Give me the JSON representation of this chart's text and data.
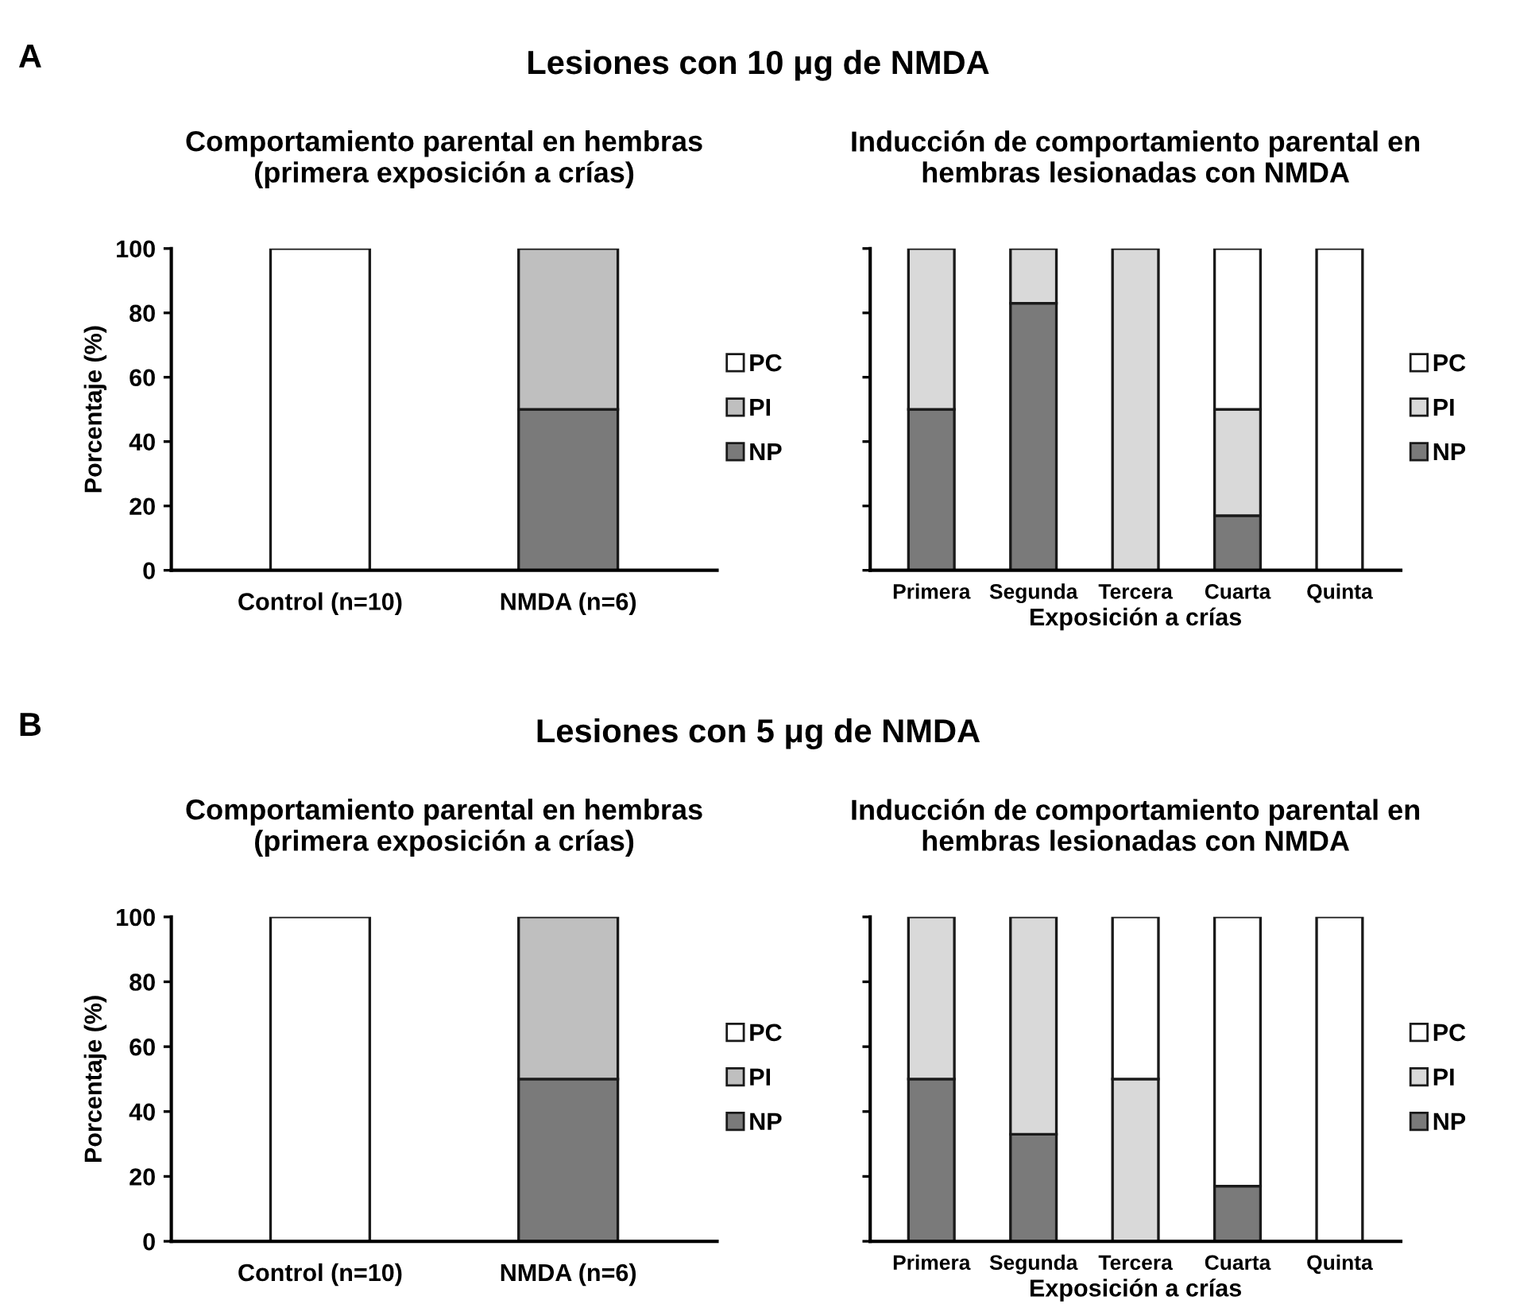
{
  "chart_data": [
    {
      "type": "bar",
      "stacked": true,
      "title": "Comportamiento parental en hembras\n(primera exposición a crías)",
      "ylabel": "Porcentaje (%)",
      "annotations": [
        "A",
        "Lesiones con 10 μg de NMDA"
      ],
      "categories": [
        "Control (n=10)",
        "NMDA (n=6)"
      ],
      "ylim": [
        0,
        100
      ],
      "yticks": [
        0,
        20,
        40,
        60,
        80,
        100
      ],
      "legend": "right",
      "series": [
        {
          "name": "NP",
          "color": "#7a7a7a",
          "values": [
            0,
            50
          ]
        },
        {
          "name": "PI",
          "color": "#bfbfbf",
          "values": [
            0,
            50
          ]
        },
        {
          "name": "PC",
          "color": "#ffffff",
          "values": [
            100,
            0
          ]
        }
      ]
    },
    {
      "type": "bar",
      "stacked": true,
      "title": "Inducción de comportamiento parental en\nhembras lesionadas con NMDA",
      "xlabel": "Exposición a crías",
      "categories": [
        "Primera",
        "Segunda",
        "Tercera",
        "Cuarta",
        "Quinta"
      ],
      "ylim": [
        0,
        100
      ],
      "yticks": [
        {
          "value": 0,
          "label": null
        },
        {
          "value": 20,
          "label": null
        },
        {
          "value": 40,
          "label": null
        },
        {
          "value": 60,
          "label": null
        },
        {
          "value": 80,
          "label": null
        },
        {
          "value": 100,
          "label": null
        }
      ],
      "tick_labels": "x",
      "legend": "right",
      "series": [
        {
          "name": "NP",
          "color": "#7a7a7a",
          "values": [
            50,
            83,
            0,
            17,
            0
          ]
        },
        {
          "name": "PI",
          "color": "#d9d9d9",
          "values": [
            50,
            17,
            100,
            33,
            0
          ]
        },
        {
          "name": "PC",
          "color": "#ffffff",
          "values": [
            0,
            0,
            0,
            50,
            100
          ]
        }
      ]
    },
    {
      "type": "bar",
      "stacked": true,
      "title": "Comportamiento parental en hembras\n(primera exposición a crías)",
      "ylabel": "Porcentaje (%)",
      "annotations": [
        "B",
        "Lesiones con 5 μg de NMDA"
      ],
      "categories": [
        "Control (n=10)",
        "NMDA (n=6)"
      ],
      "ylim": [
        0,
        100
      ],
      "yticks": [
        0,
        20,
        40,
        60,
        80,
        100
      ],
      "legend": "right",
      "series": [
        {
          "name": "NP",
          "color": "#7a7a7a",
          "values": [
            0,
            50
          ]
        },
        {
          "name": "PI",
          "color": "#bfbfbf",
          "values": [
            0,
            50
          ]
        },
        {
          "name": "PC",
          "color": "#ffffff",
          "values": [
            100,
            0
          ]
        }
      ]
    },
    {
      "type": "bar",
      "stacked": true,
      "title": "Inducción de comportamiento parental en\nhembras lesionadas con NMDA",
      "xlabel": "Exposición a crías",
      "categories": [
        "Primera",
        "Segunda",
        "Tercera",
        "Cuarta",
        "Quinta"
      ],
      "ylim": [
        0,
        100
      ],
      "yticks": [
        {
          "value": 0,
          "label": null
        },
        {
          "value": 20,
          "label": null
        },
        {
          "value": 40,
          "label": null
        },
        {
          "value": 60,
          "label": null
        },
        {
          "value": 80,
          "label": null
        },
        {
          "value": 100,
          "label": null
        }
      ],
      "tick_labels": "x",
      "legend": "right",
      "series": [
        {
          "name": "NP",
          "color": "#7a7a7a",
          "values": [
            50,
            33,
            0,
            17,
            0
          ]
        },
        {
          "name": "PI",
          "color": "#d9d9d9",
          "values": [
            50,
            67,
            50,
            0,
            0
          ]
        },
        {
          "name": "PC",
          "color": "#ffffff",
          "values": [
            0,
            0,
            50,
            83,
            100
          ]
        }
      ]
    }
  ]
}
